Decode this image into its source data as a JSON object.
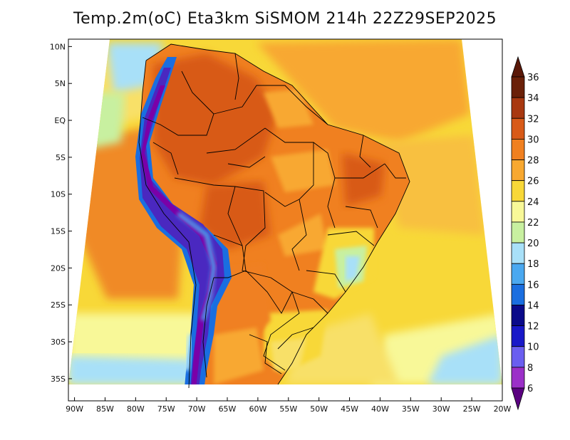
{
  "map": {
    "title": "Temp.2m(oC) Eta3km SiSMOM 214h 22Z29SEP2025",
    "lat_range": [
      -38,
      11
    ],
    "lon_range": [
      -91,
      -20
    ],
    "lat_ticks": [
      {
        "value": 10,
        "label": "10N"
      },
      {
        "value": 5,
        "label": "5N"
      },
      {
        "value": 0,
        "label": "EQ"
      },
      {
        "value": -5,
        "label": "5S"
      },
      {
        "value": -10,
        "label": "10S"
      },
      {
        "value": -15,
        "label": "15S"
      },
      {
        "value": -20,
        "label": "20S"
      },
      {
        "value": -25,
        "label": "25S"
      },
      {
        "value": -30,
        "label": "30S"
      },
      {
        "value": -35,
        "label": "35S"
      }
    ],
    "lon_ticks": [
      {
        "value": -90,
        "label": "90W"
      },
      {
        "value": -85,
        "label": "85W"
      },
      {
        "value": -80,
        "label": "80W"
      },
      {
        "value": -75,
        "label": "75W"
      },
      {
        "value": -70,
        "label": "70W"
      },
      {
        "value": -65,
        "label": "65W"
      },
      {
        "value": -60,
        "label": "60W"
      },
      {
        "value": -55,
        "label": "55W"
      },
      {
        "value": -50,
        "label": "50W"
      },
      {
        "value": -45,
        "label": "45W"
      },
      {
        "value": -40,
        "label": "40W"
      },
      {
        "value": -35,
        "label": "35W"
      },
      {
        "value": -30,
        "label": "30W"
      },
      {
        "value": -25,
        "label": "25W"
      },
      {
        "value": -20,
        "label": "20W"
      }
    ]
  },
  "colorbar": {
    "levels": [
      {
        "value": 6,
        "label": "6",
        "color": "#7a00a8"
      },
      {
        "value": 8,
        "label": "8",
        "color": "#9b2fc8"
      },
      {
        "value": 10,
        "label": "10",
        "color": "#6a5ef0"
      },
      {
        "value": 12,
        "label": "12",
        "color": "#1818c8"
      },
      {
        "value": 14,
        "label": "14",
        "color": "#0a0a8a"
      },
      {
        "value": 16,
        "label": "16",
        "color": "#1a6ee0"
      },
      {
        "value": 18,
        "label": "18",
        "color": "#4aa8f0"
      },
      {
        "value": 20,
        "label": "20",
        "color": "#a8e0f8"
      },
      {
        "value": 22,
        "label": "22",
        "color": "#c8f0a0"
      },
      {
        "value": 24,
        "label": "24",
        "color": "#f8f898"
      },
      {
        "value": 26,
        "label": "26",
        "color": "#f8d838"
      },
      {
        "value": 28,
        "label": "28",
        "color": "#f8a830"
      },
      {
        "value": 30,
        "label": "30",
        "color": "#f08020"
      },
      {
        "value": 32,
        "label": "32",
        "color": "#d85a18"
      },
      {
        "value": 34,
        "label": "34",
        "color": "#a83810"
      },
      {
        "value": 36,
        "label": "36",
        "color": "#6a2008"
      }
    ],
    "under_color": "#5a0080",
    "over_color": "#5a1808"
  }
}
